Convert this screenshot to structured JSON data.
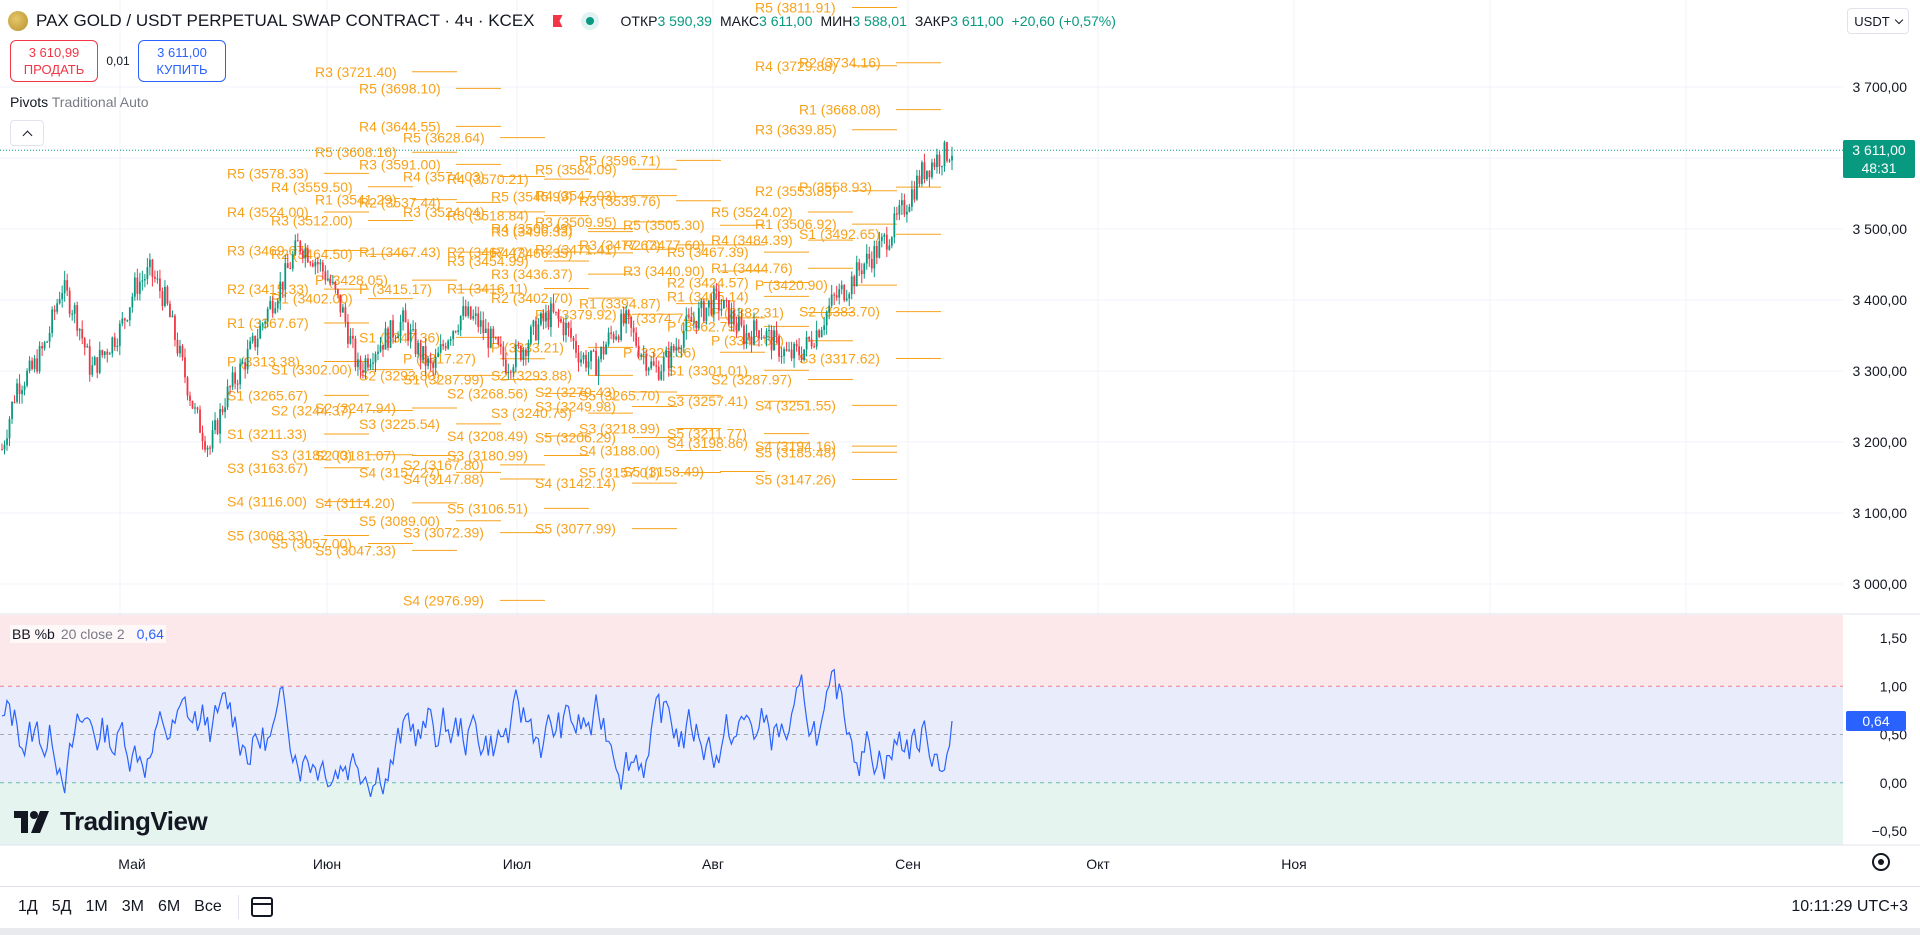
{
  "header": {
    "symbol_title": "PAX GOLD / USDT PERPETUAL SWAP CONTRACT · 4ч · KCEX",
    "open_label": "ОТКР",
    "open_value": "3 590,39",
    "high_label": "МАКС",
    "high_value": "3 611,00",
    "low_label": "МИН",
    "low_value": "3 588,01",
    "close_label": "ЗАКР",
    "close_value": "3 611,00",
    "change": "+20,60 (+0,57%)",
    "currency": "USDT"
  },
  "trade": {
    "sell_price": "3 610,99",
    "sell_label": "ПРОДАТЬ",
    "spread": "0,01",
    "buy_price": "3 611,00",
    "buy_label": "КУПИТЬ"
  },
  "pivots_legend": {
    "name": "Pivots",
    "params": "Traditional Auto"
  },
  "price_badge": {
    "price": "3 611,00",
    "countdown": "48:31"
  },
  "bb_legend": {
    "name": "BB %b",
    "params": "20 close 2",
    "value": "0,64"
  },
  "bb_badge": "0,64",
  "logo": {
    "word": "TradingView"
  },
  "time_ranges": [
    "1Д",
    "5Д",
    "1М",
    "3М",
    "6М",
    "Все"
  ],
  "clock": "10:11:29 UTC+3",
  "colors": {
    "up": "#089981",
    "down": "#f23645",
    "pivot": "#f7a21b",
    "bb_line": "#2962ff"
  },
  "chart_data": {
    "type": "candlestick",
    "price_axis": {
      "ticks": [
        "3 700,00",
        "3 600,00",
        "3 500,00",
        "3 400,00",
        "3 300,00",
        "3 200,00",
        "3 100,00",
        "3 000,00"
      ],
      "values": [
        3700,
        3600,
        3500,
        3400,
        3300,
        3200,
        3100,
        3000
      ]
    },
    "time_axis": [
      "Май",
      "Июн",
      "Июл",
      "Авг",
      "Сен",
      "Окт",
      "Ноя"
    ],
    "last_price": 3611.0,
    "price_path": [
      3190,
      3280,
      3300,
      3340,
      3420,
      3380,
      3300,
      3330,
      3360,
      3420,
      3440,
      3400,
      3320,
      3240,
      3190,
      3260,
      3300,
      3340,
      3390,
      3430,
      3480,
      3460,
      3430,
      3380,
      3300,
      3330,
      3350,
      3370,
      3330,
      3300,
      3350,
      3380,
      3370,
      3340,
      3310,
      3330,
      3360,
      3380,
      3360,
      3320,
      3310,
      3350,
      3370,
      3330,
      3300,
      3320,
      3360,
      3380,
      3400,
      3380,
      3350,
      3360,
      3340,
      3320,
      3330,
      3360,
      3400,
      3420,
      3450,
      3470,
      3500,
      3540,
      3580,
      3600,
      3611
    ],
    "bb_axis": {
      "ticks": [
        "1,50",
        "1,00",
        "0,50",
        "0,00",
        "−0,50"
      ],
      "values": [
        1.5,
        1.0,
        0.5,
        0.0,
        -0.5
      ]
    },
    "bb_value": 0.64,
    "pivot_labels": [
      {
        "t": "R5 (3811.91)",
        "x": 3811.91,
        "col": 16
      },
      {
        "t": "R4 (3729.88)",
        "x": 3729.88,
        "col": 16
      },
      {
        "t": "R3 (3721.40)",
        "x": 3721.4,
        "col": 6
      },
      {
        "t": "R2 (3734.16)",
        "x": 3734.16,
        "col": 17
      },
      {
        "t": "R5 (3698.10)",
        "x": 3698.1,
        "col": 7
      },
      {
        "t": "R1 (3668.08)",
        "x": 3668.08,
        "col": 17
      },
      {
        "t": "R4 (3644.55)",
        "x": 3644.55,
        "col": 7
      },
      {
        "t": "R3 (3639.85)",
        "x": 3639.85,
        "col": 16
      },
      {
        "t": "R5 (3628.64)",
        "x": 3628.64,
        "col": 8
      },
      {
        "t": "R5 (3608.16)",
        "x": 3608.16,
        "col": 6
      },
      {
        "t": "R5 (3596.71)",
        "x": 3596.71,
        "col": 12
      },
      {
        "t": "R3 (3591.00)",
        "x": 3591.0,
        "col": 7
      },
      {
        "t": "R5 (3584.09)",
        "x": 3584.09,
        "col": 11
      },
      {
        "t": "R5 (3578.33)",
        "x": 3578.33,
        "col": 4
      },
      {
        "t": "R4 (3574.03)",
        "x": 3574.03,
        "col": 8
      },
      {
        "t": "R4 (3570.21)",
        "x": 3570.21,
        "col": 9
      },
      {
        "t": "R4 (3559.50)",
        "x": 3559.5,
        "col": 5
      },
      {
        "t": "P (3558.93)",
        "x": 3558.93,
        "col": 17
      },
      {
        "t": "R2 (3553.83)",
        "x": 3553.83,
        "col": 16
      },
      {
        "t": "R5 (3545.99)",
        "x": 3545.99,
        "col": 10
      },
      {
        "t": "R4 (3547.03)",
        "x": 3547.03,
        "col": 11
      },
      {
        "t": "R1 (3541.29)",
        "x": 3541.29,
        "col": 6
      },
      {
        "t": "R3 (3539.76)",
        "x": 3539.76,
        "col": 12
      },
      {
        "t": "R2 (3537.44)",
        "x": 3537.44,
        "col": 7
      },
      {
        "t": "R4 (3524.00)",
        "x": 3524.0,
        "col": 4
      },
      {
        "t": "R5 (3524.02)",
        "x": 3524.02,
        "col": 15
      },
      {
        "t": "R3 (3524.04)",
        "x": 3524.04,
        "col": 8
      },
      {
        "t": "R3 (3518.84)",
        "x": 3518.84,
        "col": 9
      },
      {
        "t": "R3 (3512.00)",
        "x": 3512.0,
        "col": 5
      },
      {
        "t": "R3 (3509.95)",
        "x": 3509.95,
        "col": 11
      },
      {
        "t": "R1 (3506.92)",
        "x": 3506.92,
        "col": 16
      },
      {
        "t": "R5 (3505.30)",
        "x": 3505.3,
        "col": 13
      },
      {
        "t": "R4 (3500.49)",
        "x": 3500.49,
        "col": 10
      },
      {
        "t": "R3 (3496.33)",
        "x": 3496.33,
        "col": 10
      },
      {
        "t": "S1 (3492.65)",
        "x": 3492.65,
        "col": 17
      },
      {
        "t": "R4 (3484.39)",
        "x": 3484.39,
        "col": 15
      },
      {
        "t": "R2 (3477.60)",
        "x": 3477.6,
        "col": 13
      },
      {
        "t": "R3 (3477.67)",
        "x": 3477.67,
        "col": 12
      },
      {
        "t": "R2 (3471.41)",
        "x": 3471.41,
        "col": 11
      },
      {
        "t": "R3 (3469.67)",
        "x": 3469.67,
        "col": 4
      },
      {
        "t": "R1 (3467.43)",
        "x": 3467.43,
        "col": 7
      },
      {
        "t": "R2 (3467.47)",
        "x": 3467.47,
        "col": 9
      },
      {
        "t": "R5 (3467.39)",
        "x": 3467.39,
        "col": 14
      },
      {
        "t": "R4 (3466.35)",
        "x": 3466.35,
        "col": 10
      },
      {
        "t": "R2 (3464.50)",
        "x": 3464.5,
        "col": 5
      },
      {
        "t": "R3 (3454.99)",
        "x": 3454.99,
        "col": 9
      },
      {
        "t": "R1 (3444.76)",
        "x": 3444.76,
        "col": 15
      },
      {
        "t": "R3 (3440.90)",
        "x": 3440.9,
        "col": 13
      },
      {
        "t": "R3 (3436.37)",
        "x": 3436.37,
        "col": 10
      },
      {
        "t": "P (3428.05)",
        "x": 3428.05,
        "col": 6
      },
      {
        "t": "R2 (3424.57)",
        "x": 3424.57,
        "col": 14
      },
      {
        "t": "P (3420.90)",
        "x": 3420.9,
        "col": 16
      },
      {
        "t": "R2 (3415.33)",
        "x": 3415.33,
        "col": 4
      },
      {
        "t": "P (3415.17)",
        "x": 3415.17,
        "col": 7
      },
      {
        "t": "R1 (3416.11)",
        "x": 3416.11,
        "col": 9
      },
      {
        "t": "R1 (3402.00)",
        "x": 3402.0,
        "col": 5
      },
      {
        "t": "R2 (3402.70)",
        "x": 3402.7,
        "col": 10
      },
      {
        "t": "R1 (3405.14)",
        "x": 3405.14,
        "col": 14
      },
      {
        "t": "R1 (3394.87)",
        "x": 3394.87,
        "col": 12
      },
      {
        "t": "S2 (3383.70)",
        "x": 3383.7,
        "col": 17
      },
      {
        "t": "P (3382.31)",
        "x": 3382.31,
        "col": 15
      },
      {
        "t": "R1 (3379.92)",
        "x": 3379.92,
        "col": 11
      },
      {
        "t": "P (3374.74)",
        "x": 3374.74,
        "col": 13
      },
      {
        "t": "R1 (3367.67)",
        "x": 3367.67,
        "col": 4
      },
      {
        "t": "P (3362.79)",
        "x": 3362.79,
        "col": 14
      },
      {
        "t": "S1 (3347.36)",
        "x": 3347.36,
        "col": 7
      },
      {
        "t": "P (3342.69)",
        "x": 3342.69,
        "col": 15
      },
      {
        "t": "P (3333.21)",
        "x": 3333.21,
        "col": 10
      },
      {
        "t": "P (3326.36)",
        "x": 3326.36,
        "col": 13
      },
      {
        "t": "S3 (3317.62)",
        "x": 3317.62,
        "col": 17
      },
      {
        "t": "P (3313.38)",
        "x": 3313.38,
        "col": 4
      },
      {
        "t": "P (3317.27)",
        "x": 3317.27,
        "col": 8
      },
      {
        "t": "S1 (3301.01)",
        "x": 3301.01,
        "col": 14
      },
      {
        "t": "S1 (3302.00)",
        "x": 3302.0,
        "col": 5
      },
      {
        "t": "S2 (3293.80)",
        "x": 3293.8,
        "col": 7
      },
      {
        "t": "S2 (3293.88)",
        "x": 3293.88,
        "col": 10
      },
      {
        "t": "S2 (3287.97)",
        "x": 3287.97,
        "col": 15
      },
      {
        "t": "S1 (3287.99)",
        "x": 3287.99,
        "col": 8
      },
      {
        "t": "S1 (3265.67)",
        "x": 3265.67,
        "col": 4
      },
      {
        "t": "S2 (3268.56)",
        "x": 3268.56,
        "col": 9
      },
      {
        "t": "S2 (3270.43)",
        "x": 3270.43,
        "col": 11
      },
      {
        "t": "S5 (3265.70)",
        "x": 3265.7,
        "col": 12
      },
      {
        "t": "S3 (3257.41)",
        "x": 3257.41,
        "col": 14
      },
      {
        "t": "S4 (3251.55)",
        "x": 3251.55,
        "col": 16
      },
      {
        "t": "S2 (3247.94)",
        "x": 3247.94,
        "col": 6
      },
      {
        "t": "S3 (3249.98)",
        "x": 3249.98,
        "col": 11
      },
      {
        "t": "S2 (3244.37)",
        "x": 3244.37,
        "col": 5
      },
      {
        "t": "S3 (3240.75)",
        "x": 3240.75,
        "col": 10
      },
      {
        "t": "S3 (3225.54)",
        "x": 3225.54,
        "col": 7
      },
      {
        "t": "S3 (3218.99)",
        "x": 3218.99,
        "col": 12
      },
      {
        "t": "S5 (3211.77)",
        "x": 3211.77,
        "col": 14
      },
      {
        "t": "S1 (3211.33)",
        "x": 3211.33,
        "col": 4
      },
      {
        "t": "S4 (3208.49)",
        "x": 3208.49,
        "col": 9
      },
      {
        "t": "S5 (3206.29)",
        "x": 3206.29,
        "col": 11
      },
      {
        "t": "S4 (3198.86)",
        "x": 3198.86,
        "col": 14
      },
      {
        "t": "S4 (3194.16)",
        "x": 3194.16,
        "col": 16
      },
      {
        "t": "S4 (3188.00)",
        "x": 3188.0,
        "col": 12
      },
      {
        "t": "S5 (3185.48)",
        "x": 3185.48,
        "col": 16
      },
      {
        "t": "S3 (3182.00)",
        "x": 3182.0,
        "col": 5
      },
      {
        "t": "S2 (3181.07)",
        "x": 3181.07,
        "col": 6
      },
      {
        "t": "S3 (3180.99)",
        "x": 3180.99,
        "col": 9
      },
      {
        "t": "S2 (3167.80)",
        "x": 3167.8,
        "col": 8
      },
      {
        "t": "S3 (3163.67)",
        "x": 3163.67,
        "col": 4
      },
      {
        "t": "S4 (3157.27)",
        "x": 3157.27,
        "col": 7
      },
      {
        "t": "S5 (3157.01)",
        "x": 3157.01,
        "col": 12
      },
      {
        "t": "S5 (3158.49)",
        "x": 3158.49,
        "col": 13
      },
      {
        "t": "S4 (3147.88)",
        "x": 3147.88,
        "col": 8
      },
      {
        "t": "S5 (3147.26)",
        "x": 3147.26,
        "col": 16
      },
      {
        "t": "S4 (3142.14)",
        "x": 3142.14,
        "col": 11
      },
      {
        "t": "S4 (3116.00)",
        "x": 3116.0,
        "col": 4
      },
      {
        "t": "S4 (3114.20)",
        "x": 3114.2,
        "col": 6
      },
      {
        "t": "S5 (3106.51)",
        "x": 3106.51,
        "col": 9
      },
      {
        "t": "S5 (3089.00)",
        "x": 3089.0,
        "col": 7
      },
      {
        "t": "S5 (3077.99)",
        "x": 3077.99,
        "col": 11
      },
      {
        "t": "S3 (3072.39)",
        "x": 3072.39,
        "col": 8
      },
      {
        "t": "S5 (3068.33)",
        "x": 3068.33,
        "col": 4
      },
      {
        "t": "S5 (3057.00)",
        "x": 3057.0,
        "col": 5
      },
      {
        "t": "S5 (3047.33)",
        "x": 3047.33,
        "col": 6
      },
      {
        "t": "S4 (2976.99)",
        "x": 2976.99,
        "col": 8
      }
    ]
  }
}
